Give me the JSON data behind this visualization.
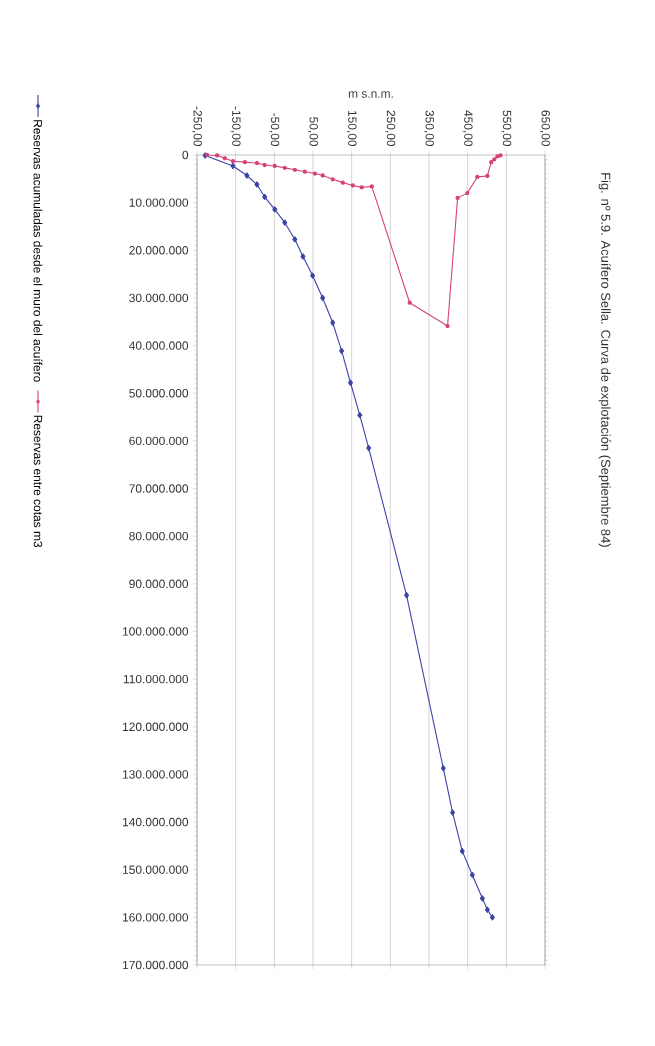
{
  "chart_data": {
    "type": "line",
    "title": "Fig. nº 5.9. Acuífero Sella. Curva de explotación (Septiembre 84)",
    "xlabel": "m s.n.m.",
    "series": [
      {
        "name": "Reservas acumuladas desde el muro del acuífero",
        "color": "#3a45a6",
        "marker": "diamond",
        "x": [
          -229,
          -157,
          -121,
          -95,
          -75,
          -49,
          -23,
          3,
          24,
          49,
          75,
          101,
          124,
          147,
          171,
          194,
          292,
          387,
          411,
          436,
          462,
          488,
          501,
          514
        ],
        "values": [
          100000,
          2300000,
          4300000,
          6200000,
          8800000,
          11400000,
          14200000,
          17700000,
          21300000,
          25300000,
          30000000,
          35200000,
          41100000,
          47800000,
          54600000,
          61500000,
          92400000,
          128700000,
          138000000,
          146100000,
          151100000,
          156000000,
          158400000,
          160000000
        ]
      },
      {
        "name": "Reservas entre cotas m3",
        "color": "#d8407a",
        "marker": "circle",
        "x": [
          -224,
          -198,
          -178,
          -157,
          -126,
          -95,
          -75,
          -49,
          -23,
          3,
          29,
          55,
          75,
          101,
          127,
          153,
          176,
          202,
          300,
          398,
          424,
          449,
          475,
          501,
          511,
          519,
          527,
          535
        ],
        "values": [
          0,
          100000,
          700000,
          1300000,
          1500000,
          1700000,
          2100000,
          2300000,
          2700000,
          3100000,
          3500000,
          3900000,
          4300000,
          5100000,
          5800000,
          6400000,
          6800000,
          6600000,
          31000000,
          35900000,
          9000000,
          8000000,
          4600000,
          4400000,
          1500000,
          900000,
          300000,
          100000
        ]
      }
    ],
    "xlim": [
      -250,
      650
    ],
    "xticks": [
      {
        "value": -250,
        "label": "-250,00"
      },
      {
        "value": -150,
        "label": "-150,00"
      },
      {
        "value": -50,
        "label": "-50,00"
      },
      {
        "value": 50,
        "label": "50,00"
      },
      {
        "value": 150,
        "label": "150,00"
      },
      {
        "value": 250,
        "label": "250,00"
      },
      {
        "value": 350,
        "label": "350,00"
      },
      {
        "value": 450,
        "label": "450,00"
      },
      {
        "value": 550,
        "label": "550,00"
      },
      {
        "value": 650,
        "label": "650,00"
      }
    ],
    "ylim": [
      170000000,
      0
    ],
    "yticks": [
      0,
      {
        "value": 10000000,
        "label": "10.000.000"
      },
      {
        "value": 20000000,
        "label": "20.000.000"
      },
      {
        "value": 30000000,
        "label": "30.000.000"
      },
      {
        "value": 40000000,
        "label": "40.000.000"
      },
      {
        "value": 50000000,
        "label": "50.000.000"
      },
      {
        "value": 60000000,
        "label": "60.000.000"
      },
      {
        "value": 70000000,
        "label": "70.000.000"
      },
      {
        "value": 80000000,
        "label": "80.000.000"
      },
      {
        "value": 90000000,
        "label": "90.000.000"
      },
      {
        "value": 100000000,
        "label": "100.000.000"
      },
      {
        "value": 110000000,
        "label": "110.000.000"
      },
      {
        "value": 120000000,
        "label": "120.000.000"
      },
      {
        "value": 130000000,
        "label": "130.000.000"
      },
      {
        "value": 140000000,
        "label": "140.000.000"
      },
      {
        "value": 150000000,
        "label": "150.000.000"
      },
      {
        "value": 160000000,
        "label": "160.000.000"
      },
      {
        "value": 170000000,
        "label": "170.000.000"
      }
    ],
    "grid": "x",
    "legend": "left"
  }
}
